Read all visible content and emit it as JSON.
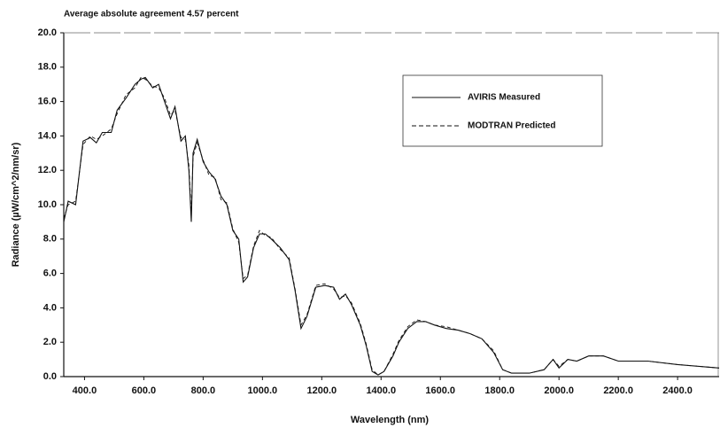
{
  "chart_data": {
    "type": "line",
    "title": "Average absolute agreement 4.57 percent",
    "x_label": "Wavelength (nm)",
    "y_label": "Radiance (µW/cm^2/nm/sr)",
    "x": [
      330,
      345,
      370,
      395,
      420,
      440,
      460,
      490,
      510,
      540,
      570,
      590,
      605,
      630,
      650,
      670,
      690,
      705,
      725,
      740,
      752,
      760,
      766,
      780,
      800,
      820,
      840,
      860,
      880,
      900,
      920,
      935,
      950,
      970,
      990,
      1010,
      1030,
      1060,
      1090,
      1110,
      1130,
      1150,
      1180,
      1210,
      1240,
      1260,
      1280,
      1300,
      1330,
      1350,
      1370,
      1390,
      1410,
      1440,
      1460,
      1490,
      1520,
      1550,
      1580,
      1620,
      1660,
      1700,
      1740,
      1780,
      1810,
      1840,
      1900,
      1950,
      1980,
      2000,
      2030,
      2060,
      2100,
      2150,
      2200,
      2300,
      2400,
      2540
    ],
    "series": [
      {
        "name": "AVIRIS Measured",
        "color": "#111111",
        "dash": false,
        "values": [
          9.0,
          10.2,
          10.0,
          13.7,
          13.9,
          13.6,
          14.2,
          14.2,
          15.5,
          16.2,
          17.0,
          17.3,
          17.4,
          16.8,
          17.0,
          16.0,
          15.0,
          15.7,
          13.7,
          14.0,
          12.0,
          9.0,
          13.0,
          13.8,
          12.5,
          11.9,
          11.5,
          10.5,
          10.0,
          8.5,
          8.0,
          5.5,
          5.8,
          7.5,
          8.3,
          8.3,
          8.0,
          7.5,
          6.8,
          5.0,
          2.8,
          3.5,
          5.2,
          5.3,
          5.2,
          4.5,
          4.8,
          4.2,
          3.0,
          1.8,
          0.3,
          0.1,
          0.3,
          1.2,
          2.0,
          2.8,
          3.2,
          3.2,
          3.0,
          2.8,
          2.7,
          2.5,
          2.2,
          1.4,
          0.4,
          0.2,
          0.2,
          0.4,
          1.0,
          0.5,
          1.0,
          0.9,
          1.2,
          1.2,
          0.9,
          0.9,
          0.7,
          0.5
        ]
      },
      {
        "name": "MODTRAN Predicted",
        "color": "#111111",
        "dash": true,
        "values": [
          9.2,
          10.0,
          10.2,
          13.5,
          14.0,
          13.8,
          14.0,
          14.4,
          15.3,
          16.4,
          16.8,
          17.4,
          17.3,
          16.9,
          16.8,
          16.2,
          15.2,
          15.5,
          13.9,
          13.8,
          12.3,
          9.4,
          12.8,
          13.6,
          12.6,
          11.7,
          11.6,
          10.3,
          10.1,
          8.6,
          7.8,
          5.7,
          5.9,
          7.6,
          8.5,
          8.2,
          8.1,
          7.4,
          6.9,
          5.1,
          3.0,
          3.6,
          5.3,
          5.4,
          5.1,
          4.6,
          4.7,
          4.3,
          3.1,
          1.9,
          0.4,
          0.1,
          0.3,
          1.3,
          2.1,
          2.9,
          3.3,
          3.2,
          3.0,
          2.9,
          2.7,
          2.5,
          2.2,
          1.5,
          0.4,
          0.2,
          0.2,
          0.4,
          1.0,
          0.6,
          1.0,
          0.9,
          1.2,
          1.2,
          0.9,
          0.9,
          0.7,
          0.5
        ]
      }
    ],
    "xlim": [
      330,
      2540
    ],
    "ylim": [
      0,
      20
    ],
    "xticks": [
      {
        "value": 400,
        "label": "400.0"
      },
      {
        "value": 600,
        "label": "600.0"
      },
      {
        "value": 800,
        "label": "800.0"
      },
      {
        "value": 1000,
        "label": "1000.0"
      },
      {
        "value": 1200,
        "label": "1200.0"
      },
      {
        "value": 1400,
        "label": "1400.0"
      },
      {
        "value": 1600,
        "label": "1600.0"
      },
      {
        "value": 1800,
        "label": "1800.0"
      },
      {
        "value": 2000,
        "label": "2000.0"
      },
      {
        "value": 2200,
        "label": "2200.0"
      },
      {
        "value": 2400,
        "label": "2400.0"
      }
    ],
    "yticks": [
      {
        "value": 0,
        "label": "0.0"
      },
      {
        "value": 2,
        "label": "2.0"
      },
      {
        "value": 4,
        "label": "4.0"
      },
      {
        "value": 6,
        "label": "6.0"
      },
      {
        "value": 8,
        "label": "8.0"
      },
      {
        "value": 10,
        "label": "10.0"
      },
      {
        "value": 12,
        "label": "12.0"
      },
      {
        "value": 14,
        "label": "14.0"
      },
      {
        "value": 16,
        "label": "16.0"
      },
      {
        "value": 18,
        "label": "18.0"
      },
      {
        "value": 20,
        "label": "20.0"
      }
    ],
    "legend": "upper right"
  }
}
